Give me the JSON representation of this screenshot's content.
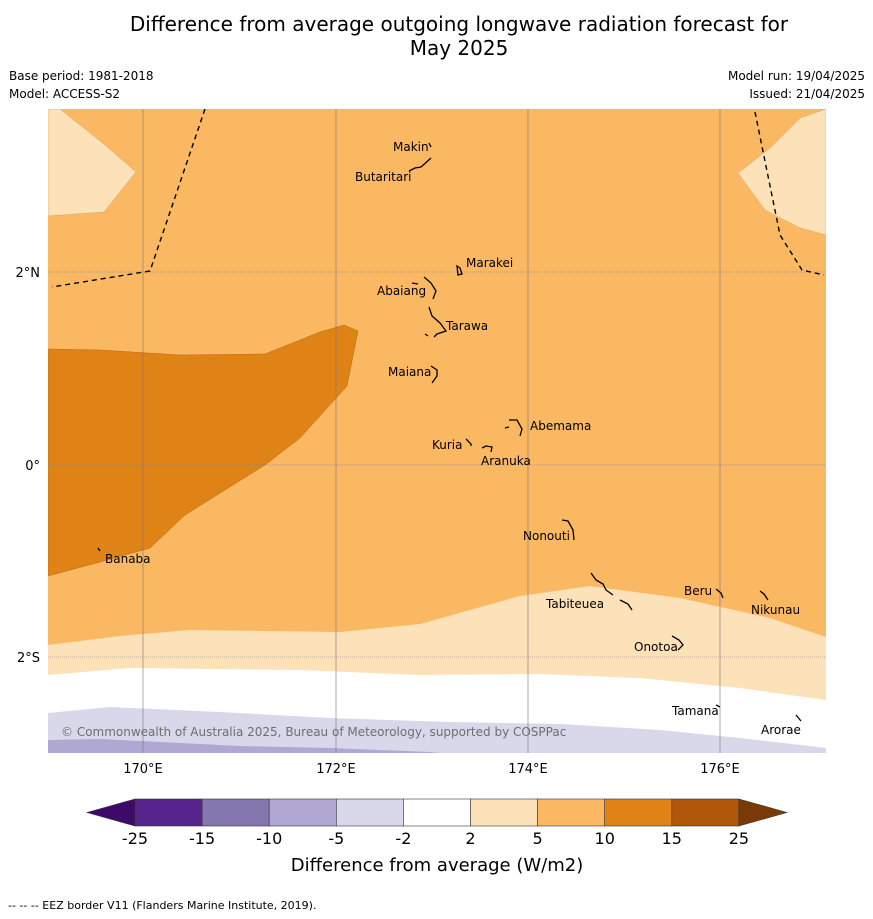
{
  "title": {
    "line1": "Difference from average outgoing longwave radiation forecast for",
    "line2": "May 2025"
  },
  "meta": {
    "base_period": "Base period: 1981-2018",
    "model": "Model: ACCESS-S2",
    "model_run": "Model run: 19/04/2025",
    "issued": "Issued: 21/04/2025"
  },
  "map": {
    "longitude_labels": [
      "170°E",
      "172°E",
      "174°E",
      "176°E"
    ],
    "latitude_labels": [
      "2°N",
      "0°",
      "2°S"
    ],
    "islands": [
      "Makin",
      "Butaritari",
      "Marakei",
      "Abaiang",
      "Tarawa",
      "Maiana",
      "Abemama",
      "Kuria",
      "Aranuka",
      "Banaba",
      "Nonouti",
      "Tabiteuea",
      "Beru",
      "Nikunau",
      "Onotoa",
      "Tamana",
      "Arorae"
    ],
    "copyright": "© Commonwealth of Australia 2025, Bureau of Meteorology, supported by COSPPac",
    "fill_colors": {
      "2_to_5": "#fde1b8",
      "5_to_10": "#fbb862",
      "10_to_15": "#e08317",
      "-5_to_-2": "#d8d8ea",
      "-10_to_-5": "#b0a8d2"
    }
  },
  "colorbar": {
    "ticks": [
      "-25",
      "-15",
      "-10",
      "-5",
      "-2",
      "2",
      "5",
      "10",
      "15",
      "25"
    ],
    "label": "Difference from average (W/m2)",
    "colors": [
      "#3e0a6a",
      "#57268c",
      "#8476ae",
      "#b0a8d2",
      "#d8d8ea",
      "#ffffff",
      "#fde1b8",
      "#fbb862",
      "#e08317",
      "#b1570a",
      "#7a3a08"
    ]
  },
  "footnote": "--  --  -- EEZ border V11 (Flanders Marine Institute, 2019)."
}
